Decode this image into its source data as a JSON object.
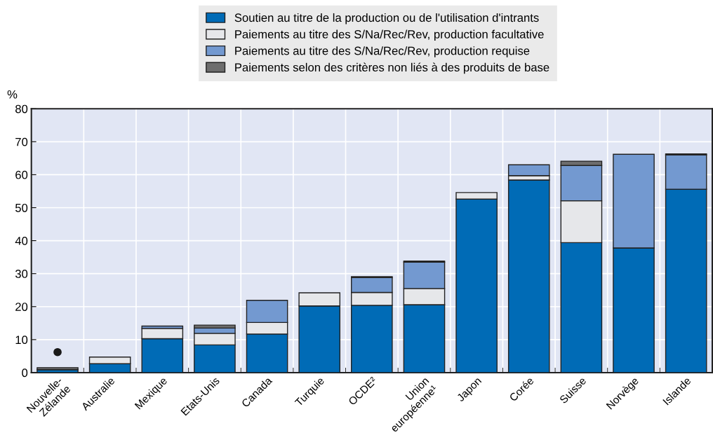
{
  "chart_data": {
    "type": "bar",
    "stacked": true,
    "ylabel": "%",
    "categories": [
      "Nouvelle-\nZélande",
      "Australie",
      "Mexique",
      "Etats-Unis",
      "Canada",
      "Turquie",
      "OCDE²",
      "Union\neuropéenne¹",
      "Japon",
      "Corée",
      "Suisse",
      "Norvège",
      "Islande"
    ],
    "series": [
      {
        "name": "Soutien au titre de la production ou de l'utilisation d'intrants",
        "color": "#006bb6",
        "values": [
          0.9,
          2.7,
          10.3,
          8.4,
          11.7,
          20.2,
          20.4,
          20.6,
          52.6,
          58.4,
          39.4,
          37.8,
          55.6
        ]
      },
      {
        "name": "Paiements au titre des S/Na/Rec/Rev, production facultative",
        "color": "#e6e7ea",
        "values": [
          0,
          2.0,
          3.1,
          3.5,
          3.5,
          4.0,
          3.9,
          4.9,
          2.0,
          1.3,
          12.7,
          0,
          0
        ]
      },
      {
        "name": "Paiements au titre des S/Na/Rec/Rev, production requise",
        "color": "#7399d0",
        "values": [
          0,
          0,
          0.7,
          1.6,
          6.7,
          0,
          4.5,
          8.0,
          0,
          3.3,
          10.7,
          28.4,
          10.4
        ]
      },
      {
        "name": "Paiements selon des critères non liés à des produits de base",
        "color": "#6d6d6d",
        "values": [
          0.6,
          0,
          0,
          0.9,
          0,
          0,
          0.3,
          0.3,
          0,
          0,
          1.3,
          0,
          0.3
        ]
      },
      {
        "type": "scatter",
        "color": "#1a1a1a",
        "x": [
          "Nouvelle-\nZélande"
        ],
        "values": [
          6.2
        ]
      }
    ],
    "ylim": [
      0,
      80
    ],
    "yticks": [
      0,
      10,
      20,
      30,
      40,
      50,
      60,
      70,
      80
    ],
    "grid": true,
    "legend": "top"
  }
}
